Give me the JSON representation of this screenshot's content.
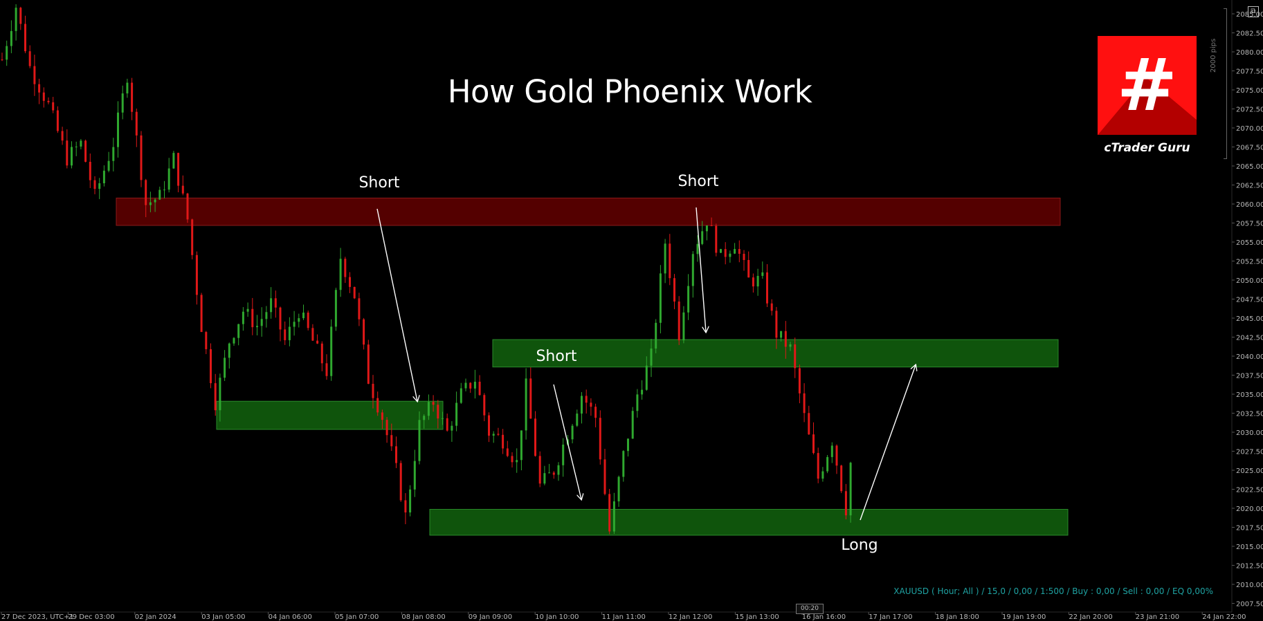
{
  "title": "How Gold Phoenix Work",
  "status_line": "XAUUSD ( Hour; All ) / 15,0 / 0,00 / 1:500 / Buy : 0,00 / Sell : 0,00 / EQ 0,00%",
  "pips_label": "2000 pips",
  "cursor_time": "00:20",
  "popout_icon": "⧉",
  "logo": {
    "hash": "#",
    "name": "cTrader Guru",
    "bg_color": "#ff1010",
    "shadow_color": "#b30000"
  },
  "colors": {
    "background": "#000000",
    "bull": "#2fa82f",
    "bear": "#e01818",
    "resistance_zone": "#6b0000",
    "support_zone": "#136b10",
    "arrow": "#ffffff",
    "status": "#1fa3a3"
  },
  "chart_data": {
    "type": "candlestick",
    "symbol": "XAUUSD",
    "timeframe": "Hour",
    "y_axis": {
      "range": [
        2006.0,
        2086.0
      ],
      "ticks": [
        "2085.00",
        "2082.50",
        "2080.00",
        "2077.50",
        "2075.00",
        "2072.50",
        "2070.00",
        "2067.50",
        "2065.00",
        "2062.50",
        "2060.00",
        "2057.50",
        "2055.00",
        "2052.50",
        "2050.00",
        "2047.50",
        "2045.00",
        "2042.50",
        "2040.00",
        "2037.50",
        "2035.00",
        "2032.50",
        "2030.00",
        "2027.50",
        "2025.00",
        "2022.50",
        "2020.00",
        "2017.50",
        "2015.00",
        "2012.50",
        "2010.00",
        "2007.50"
      ]
    },
    "x_axis": {
      "ticks": [
        "27 Dec 2023, UTC+1",
        "29 Dec 03:00",
        "02 Jan 2024",
        "03 Jan 05:00",
        "04 Jan 06:00",
        "05 Jan 07:00",
        "08 Jan 08:00",
        "09 Jan 09:00",
        "10 Jan 10:00",
        "11 Jan 11:00",
        "12 Jan 12:00",
        "15 Jan 13:00",
        "16 Jan 16:00",
        "17 Jan 17:00",
        "18 Jan 18:00",
        "19 Jan 19:00",
        "22 Jan 20:00",
        "23 Jan 21:00",
        "24 Jan 22:00"
      ]
    },
    "price_path": [
      [
        0,
        2079
      ],
      [
        3,
        2086
      ],
      [
        6,
        2078
      ],
      [
        10,
        2073
      ],
      [
        14,
        2066
      ],
      [
        17,
        2068
      ],
      [
        20,
        2061
      ],
      [
        24,
        2068
      ],
      [
        27,
        2077
      ],
      [
        31,
        2060
      ],
      [
        34,
        2061
      ],
      [
        37,
        2066
      ],
      [
        40,
        2058
      ],
      [
        43,
        2044
      ],
      [
        46,
        2034
      ],
      [
        49,
        2042
      ],
      [
        52,
        2046
      ],
      [
        55,
        2044
      ],
      [
        58,
        2047
      ],
      [
        61,
        2042
      ],
      [
        64,
        2046
      ],
      [
        67,
        2042
      ],
      [
        70,
        2038
      ],
      [
        73,
        2053
      ],
      [
        76,
        2048
      ],
      [
        79,
        2037
      ],
      [
        82,
        2032
      ],
      [
        85,
        2025
      ],
      [
        87,
        2019
      ],
      [
        90,
        2031
      ],
      [
        93,
        2034
      ],
      [
        96,
        2030
      ],
      [
        99,
        2035
      ],
      [
        102,
        2037
      ],
      [
        105,
        2030
      ],
      [
        108,
        2029
      ],
      [
        111,
        2026
      ],
      [
        113,
        2036
      ],
      [
        116,
        2023
      ],
      [
        119,
        2025
      ],
      [
        122,
        2030
      ],
      [
        125,
        2035
      ],
      [
        128,
        2032
      ],
      [
        131,
        2017
      ],
      [
        134,
        2027
      ],
      [
        137,
        2035
      ],
      [
        140,
        2040
      ],
      [
        143,
        2055
      ],
      [
        146,
        2043
      ],
      [
        149,
        2054
      ],
      [
        152,
        2058
      ],
      [
        155,
        2053
      ],
      [
        158,
        2055
      ],
      [
        161,
        2050
      ],
      [
        164,
        2050
      ],
      [
        167,
        2043
      ],
      [
        170,
        2041
      ],
      [
        173,
        2032
      ],
      [
        176,
        2024
      ],
      [
        179,
        2029
      ],
      [
        182,
        2020
      ],
      [
        183,
        2026
      ]
    ],
    "zones": [
      {
        "kind": "resistance",
        "y_top": 2060.8,
        "y_bottom": 2057.2,
        "x_start": "28 Dec",
        "x_end": "22 Jan"
      },
      {
        "kind": "support",
        "y_top": 2042.2,
        "y_bottom": 2038.6,
        "x_start": "08 Jan",
        "x_end": "22 Jan"
      },
      {
        "kind": "support",
        "y_top": 2034.1,
        "y_bottom": 2030.4,
        "x_start": "03 Jan",
        "x_end": "08 Jan"
      },
      {
        "kind": "support",
        "y_top": 2019.9,
        "y_bottom": 2016.5,
        "x_start": "08 Jan",
        "x_end": "22 Jan"
      }
    ],
    "annotations": [
      "Short",
      "Short",
      "Short",
      "Long"
    ]
  }
}
